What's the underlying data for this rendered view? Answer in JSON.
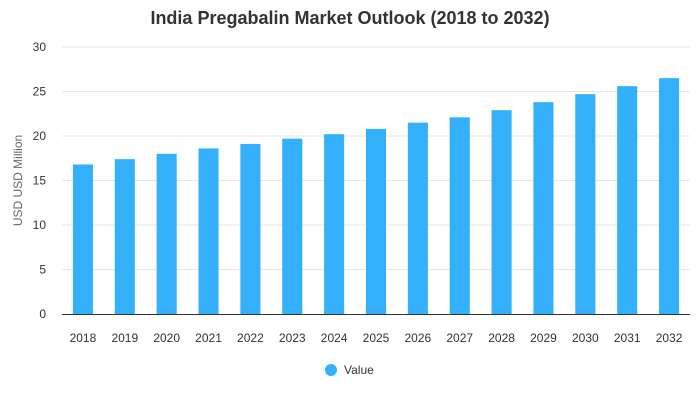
{
  "chart_data": {
    "type": "bar",
    "title": "India Pregabalin Market Outlook (2018 to 2032)",
    "xlabel": "",
    "ylabel": "USD USD Million",
    "categories": [
      "2018",
      "2019",
      "2020",
      "2021",
      "2022",
      "2023",
      "2024",
      "2025",
      "2026",
      "2027",
      "2028",
      "2029",
      "2030",
      "2031",
      "2032"
    ],
    "series": [
      {
        "name": "Value",
        "color": "#33b0f9",
        "values": [
          16.8,
          17.4,
          18.0,
          18.6,
          19.1,
          19.7,
          20.2,
          20.8,
          21.5,
          22.1,
          22.9,
          23.8,
          24.7,
          25.6,
          26.5
        ]
      }
    ],
    "ylim": [
      0,
      30
    ],
    "yticks": [
      0,
      5,
      10,
      15,
      20,
      25,
      30
    ],
    "grid": true,
    "legend_position": "bottom-center",
    "colors": {
      "bar": "#33b0f9",
      "grid": "#e6e6e6",
      "axis": "#333333"
    }
  }
}
